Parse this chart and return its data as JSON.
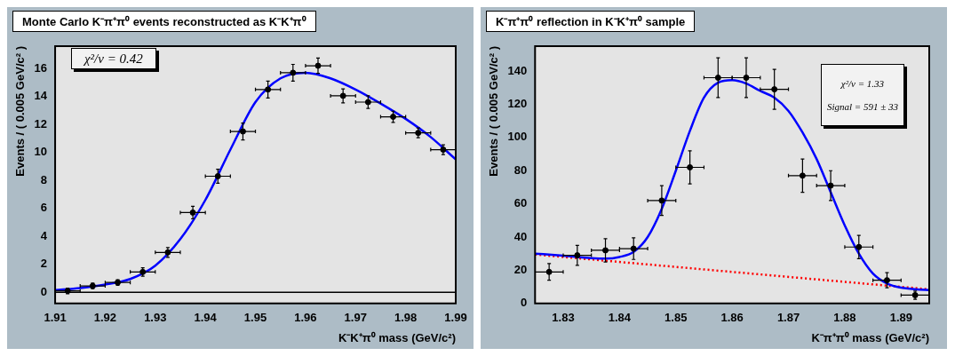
{
  "chart_data": [
    {
      "type": "scatter",
      "title": "Monte Carlo K⁻π⁺π⁰ events reconstructed as K⁻K⁺π⁰",
      "xlabel": "K⁻K⁺π⁰ mass (GeV/c²)",
      "ylabel": "Events / ( 0.005 GeV/c² )",
      "xlim": [
        1.91,
        1.99
      ],
      "ylim": [
        -0.8,
        17.6
      ],
      "xticks": [
        1.91,
        1.92,
        1.93,
        1.94,
        1.95,
        1.96,
        1.97,
        1.98,
        1.99
      ],
      "yticks": [
        0,
        2,
        4,
        6,
        8,
        10,
        12,
        14,
        16
      ],
      "grid": false,
      "annotations": [
        "χ²/ν  = 0.42"
      ],
      "ref_lines": [
        {
          "axis": "y",
          "value": 0,
          "color": "#000000"
        }
      ],
      "series": [
        {
          "color": "#000000",
          "marker": "circle",
          "x": [
            1.9125,
            1.9175,
            1.9225,
            1.9275,
            1.9325,
            1.9375,
            1.9425,
            1.9475,
            1.9525,
            1.9575,
            1.9625,
            1.9675,
            1.9725,
            1.9775,
            1.9825,
            1.9875
          ],
          "values": [
            0.1,
            0.45,
            0.7,
            1.45,
            2.85,
            5.7,
            8.3,
            11.5,
            14.5,
            15.7,
            16.2,
            14.05,
            13.6,
            12.55,
            11.4,
            10.2
          ],
          "errors": [
            0.2,
            0.2,
            0.2,
            0.3,
            0.35,
            0.45,
            0.5,
            0.6,
            0.6,
            0.6,
            0.55,
            0.5,
            0.45,
            0.4,
            0.35,
            0.35
          ],
          "xerrors": [
            0.0025,
            0.0025,
            0.0025,
            0.0025,
            0.0025,
            0.0025,
            0.0025,
            0.0025,
            0.0025,
            0.0025,
            0.0025,
            0.0025,
            0.0025,
            0.0025,
            0.0025,
            0.0025
          ]
        },
        {
          "type": "line",
          "color": "#0000ff",
          "marker": "none",
          "line_style": "solid",
          "x": [
            1.91,
            1.915,
            1.92,
            1.925,
            1.93,
            1.935,
            1.94,
            1.945,
            1.95,
            1.955,
            1.96,
            1.965,
            1.97,
            1.975,
            1.98,
            1.985,
            1.99
          ],
          "values": [
            0.15,
            0.3,
            0.55,
            0.95,
            1.9,
            3.8,
            6.6,
            10.2,
            13.6,
            15.3,
            15.7,
            15.3,
            14.5,
            13.5,
            12.4,
            11.1,
            9.5
          ]
        }
      ]
    },
    {
      "type": "scatter",
      "title": "K⁻π⁺π⁰ reflection in K⁻K⁺π⁰ sample",
      "xlabel": "K⁻π⁺π⁰ mass (GeV/c²)",
      "ylabel": "Events / ( 0.005 GeV/c² )",
      "xlim": [
        1.825,
        1.895
      ],
      "ylim": [
        0,
        155
      ],
      "xticks": [
        1.83,
        1.84,
        1.85,
        1.86,
        1.87,
        1.88,
        1.89
      ],
      "yticks": [
        0,
        20,
        40,
        60,
        80,
        100,
        120,
        140
      ],
      "grid": false,
      "annotations": [
        "χ²/ν  = 1.33",
        "Signal = 591 ± 33"
      ],
      "series": [
        {
          "color": "#000000",
          "marker": "circle",
          "x": [
            1.8275,
            1.8325,
            1.8375,
            1.8425,
            1.8475,
            1.8525,
            1.8575,
            1.8625,
            1.8675,
            1.8725,
            1.8775,
            1.8825,
            1.8875,
            1.8925
          ],
          "values": [
            19,
            29,
            32,
            33,
            62,
            82,
            136,
            136,
            129,
            77,
            71,
            34,
            14,
            5
          ],
          "errors": [
            5,
            6,
            7,
            6.5,
            9,
            10,
            12,
            12,
            12,
            10,
            9,
            7,
            4.5,
            2.5
          ],
          "xerrors": [
            0.0025,
            0.0025,
            0.0025,
            0.0025,
            0.0025,
            0.0025,
            0.0025,
            0.0025,
            0.0025,
            0.0025,
            0.0025,
            0.0025,
            0.0025,
            0.0025
          ]
        },
        {
          "type": "line",
          "color": "#0000ff",
          "marker": "none",
          "line_style": "solid",
          "x": [
            1.825,
            1.83,
            1.835,
            1.8375,
            1.84,
            1.8425,
            1.845,
            1.8475,
            1.85,
            1.8525,
            1.855,
            1.8575,
            1.86,
            1.8625,
            1.865,
            1.8675,
            1.87,
            1.8725,
            1.875,
            1.8775,
            1.88,
            1.8825,
            1.885,
            1.8875,
            1.89,
            1.895
          ],
          "values": [
            30,
            28.8,
            27.3,
            27,
            28,
            31,
            40,
            57,
            80,
            104,
            124,
            133,
            134.5,
            132.5,
            128,
            124,
            116,
            103,
            87,
            67,
            47,
            30,
            18,
            12,
            9.5,
            8
          ]
        },
        {
          "type": "line",
          "color": "#ff0000",
          "marker": "none",
          "line_style": "dotted",
          "x": [
            1.825,
            1.895
          ],
          "values": [
            29.5,
            8.5
          ]
        }
      ]
    }
  ]
}
